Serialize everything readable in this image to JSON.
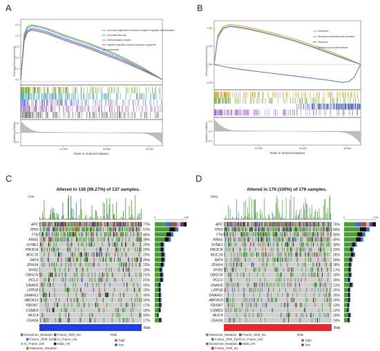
{
  "colors": {
    "risk_high": "#e8262b",
    "risk_low": "#1f3fe6",
    "frame_shift_ins": "#7b2e8c",
    "frame_shift_del": "#3b6fb5",
    "missense": "#4d9a3a",
    "nonsense": "#b04a33",
    "in_frame_ins": "#9a8a42",
    "in_frame_del": "#c9a8c2",
    "multi_hit": "#111111",
    "no_mut": "#cfcfcf",
    "gsea_a": [
      "#7a9e3a",
      "#2b9fb0",
      "#6b79d0",
      "#a05fb0",
      "#6c6c6c"
    ],
    "gsea_b": [
      "#c1a22a",
      "#7aa84a",
      "#4a5fb0",
      "#9b5fd0"
    ]
  },
  "panels": {
    "A": {
      "label": "A",
      "ylabel_top": "Running Enrichment Score",
      "ylabel_bottom": "Ranked List Metric",
      "xlabel": "Rank in Ordered Dataset",
      "xticks": [
        "10,000",
        "20,000",
        "30,000"
      ],
      "yticks": [
        "0.5",
        "0.4",
        "0.3",
        "0.2",
        "0.1",
        "0.0"
      ],
      "bottom_yticks": [
        "0.5",
        "0.0",
        "-0.5"
      ],
      "legend": [
        "chromatin organization involved in negative regulation of transcription",
        "chromatin silencing",
        "DNA packaging complex",
        "negative regulation of gene expression, epigenetic",
        "nucleosome"
      ]
    },
    "B": {
      "label": "B",
      "ylabel_top": "Running Enrichment Score",
      "ylabel_bottom": "Ranked List Metric",
      "xlabel": "Rank in Ordered Dataset",
      "xticks": [
        "10,000",
        "20,000",
        "30,000"
      ],
      "yticks": [
        "0.50",
        "0.25",
        "0.00",
        "-0.25"
      ],
      "bottom_yticks": [
        "0.5",
        "0.0",
        "-0.5"
      ],
      "legend": [
        "Alcoholism",
        "Neutrophil extracellular trap formation",
        "Ribosome",
        "Systemic lupus erythematosus"
      ]
    },
    "C": {
      "label": "C",
      "title": "Altered in 136 (99.27%) of 137 samples.",
      "top_max": "7138",
      "side_axis": [
        "0",
        "105"
      ],
      "risk_label": "Risk",
      "genes": [
        "APC",
        "TP53",
        "TTN",
        "KRAS",
        "SYNE1",
        "PIK3CA",
        "MUC16",
        "FAT4",
        "ZFHX4",
        "RYR2",
        "OBSCN",
        "PCLO",
        "DNAH5",
        "LRP1B",
        "DNAH11",
        "ABCA13",
        "FBXW7",
        "CSMD3",
        "MUC4",
        "USH2A"
      ],
      "percents": [
        "77%",
        "57%",
        "45%",
        "39%",
        "23%",
        "23%",
        "25%",
        "25%",
        "23%",
        "19%",
        "21%",
        "21%",
        "15%",
        "15%",
        "16%",
        "16%",
        "17%",
        "15%",
        "10%",
        "17%"
      ],
      "legend": [
        "Nonsense_Mutation",
        "Frame_Shift_Ins",
        "Frame_Shift_Del",
        "In_Frame_Ins",
        "In_Frame_Del",
        "Multi_Hit",
        "Missense_Mutation"
      ],
      "risk_legend_title": "Risk",
      "risk_legend": [
        "high",
        "low"
      ],
      "risk_group": "low"
    },
    "D": {
      "label": "D",
      "title": "Altered in 179 (100%) of 179 samples.",
      "top_max": "29611",
      "side_axis": [
        "0",
        "134"
      ],
      "risk_label": "Risk",
      "genes": [
        "APC",
        "TP53",
        "TTN",
        "KRAS",
        "SYNE1",
        "PIK3CA",
        "MUC16",
        "FAT4",
        "ZFHX4",
        "RYR2",
        "OBSCN",
        "PCLO",
        "DNAH5",
        "LRP1B",
        "DNAH11",
        "ABCA13",
        "FBXW7",
        "CSMD3",
        "MUC4",
        "USH2A"
      ],
      "percents": [
        "75%",
        "60%",
        "50%",
        "45%",
        "30%",
        "23%",
        "26%",
        "20%",
        "18%",
        "17%",
        "18%",
        "15%",
        "21%",
        "15%",
        "15%",
        "15%",
        "13%",
        "12%",
        "16%",
        "14%"
      ],
      "legend": [
        "Missense_Mutation",
        "Frame_Shift_Ins",
        "Frame_Shift_Del",
        "In_Frame_Del",
        "Nonsense_Mutation",
        "Multi_Hit",
        "Frame_Shift_Ins"
      ],
      "risk_legend_title": "Risk",
      "risk_legend": [
        "high",
        "low"
      ],
      "risk_group": "high"
    }
  },
  "chart_data": [
    {
      "type": "line",
      "panel": "A",
      "xlabel": "Rank in Ordered Dataset",
      "ylabel": "Running Enrichment Score",
      "xlim": [
        0,
        33000
      ],
      "ylim": [
        -0.05,
        0.55
      ],
      "series": [
        {
          "name": "chromatin organization involved in negative regulation of transcription",
          "x": [
            0,
            800,
            1500,
            2500,
            4000,
            6000,
            8000,
            10000,
            13000,
            16000,
            20000,
            24000,
            28000,
            33000
          ],
          "y": [
            0,
            0.42,
            0.48,
            0.5,
            0.49,
            0.47,
            0.44,
            0.41,
            0.37,
            0.33,
            0.27,
            0.2,
            0.12,
            0
          ]
        },
        {
          "name": "chromatin silencing",
          "x": [
            0,
            800,
            1500,
            2500,
            4000,
            6000,
            8000,
            10000,
            13000,
            16000,
            20000,
            24000,
            28000,
            33000
          ],
          "y": [
            0,
            0.4,
            0.47,
            0.49,
            0.48,
            0.46,
            0.43,
            0.4,
            0.36,
            0.32,
            0.26,
            0.19,
            0.11,
            0
          ]
        },
        {
          "name": "DNA packaging complex",
          "x": [
            0,
            800,
            1500,
            2500,
            4000,
            6000,
            8000,
            10000,
            13000,
            16000,
            20000,
            24000,
            28000,
            33000
          ],
          "y": [
            0,
            0.38,
            0.45,
            0.47,
            0.46,
            0.44,
            0.41,
            0.38,
            0.34,
            0.3,
            0.24,
            0.18,
            0.1,
            0
          ]
        },
        {
          "name": "negative regulation of gene expression, epigenetic",
          "x": [
            0,
            800,
            1500,
            2500,
            4000,
            6000,
            8000,
            10000,
            13000,
            16000,
            20000,
            24000,
            28000,
            33000
          ],
          "y": [
            0,
            0.36,
            0.44,
            0.46,
            0.45,
            0.43,
            0.4,
            0.37,
            0.33,
            0.29,
            0.23,
            0.17,
            0.1,
            0
          ]
        },
        {
          "name": "nucleosome",
          "x": [
            0,
            800,
            1500,
            2500,
            4000,
            6000,
            8000,
            10000,
            13000,
            16000,
            20000,
            24000,
            28000,
            33000
          ],
          "y": [
            0,
            0.35,
            0.43,
            0.45,
            0.44,
            0.42,
            0.39,
            0.36,
            0.32,
            0.28,
            0.22,
            0.16,
            0.09,
            0
          ]
        }
      ]
    },
    {
      "type": "line",
      "panel": "B",
      "xlabel": "Rank in Ordered Dataset",
      "ylabel": "Running Enrichment Score",
      "xlim": [
        0,
        33000
      ],
      "ylim": [
        -0.35,
        0.6
      ],
      "series": [
        {
          "name": "Alcoholism",
          "x": [
            0,
            800,
            2000,
            3500,
            5000,
            7000,
            10000,
            14000,
            18000,
            22000,
            26000,
            30000,
            33000
          ],
          "y": [
            0,
            0.4,
            0.52,
            0.55,
            0.54,
            0.52,
            0.48,
            0.42,
            0.35,
            0.27,
            0.18,
            0.08,
            0
          ]
        },
        {
          "name": "Neutrophil extracellular trap formation",
          "x": [
            0,
            800,
            2000,
            3500,
            5000,
            7000,
            10000,
            14000,
            18000,
            22000,
            26000,
            30000,
            33000
          ],
          "y": [
            0,
            0.38,
            0.5,
            0.53,
            0.52,
            0.5,
            0.46,
            0.4,
            0.33,
            0.25,
            0.16,
            0.07,
            0
          ]
        },
        {
          "name": "Ribosome",
          "x": [
            0,
            3000,
            6000,
            10000,
            14000,
            18000,
            22000,
            26000,
            29000,
            30500,
            31500,
            33000
          ],
          "y": [
            0,
            -0.04,
            -0.07,
            -0.1,
            -0.13,
            -0.16,
            -0.19,
            -0.22,
            -0.25,
            -0.23,
            -0.18,
            0
          ]
        },
        {
          "name": "Systemic lupus erythematosus",
          "x": [
            0,
            800,
            2000,
            3500,
            5000,
            7000,
            10000,
            14000,
            18000,
            22000,
            26000,
            30000,
            33000
          ],
          "y": [
            0,
            0.36,
            0.49,
            0.52,
            0.51,
            0.49,
            0.45,
            0.39,
            0.32,
            0.24,
            0.15,
            0.06,
            0
          ]
        }
      ]
    },
    {
      "type": "bar",
      "panel": "C",
      "title": "Altered in 136 (99.27%) of 137 samples.",
      "categories": [
        "APC",
        "TP53",
        "TTN",
        "KRAS",
        "SYNE1",
        "PIK3CA",
        "MUC16",
        "FAT4",
        "ZFHX4",
        "RYR2",
        "OBSCN",
        "PCLO",
        "DNAH5",
        "LRP1B",
        "DNAH11",
        "ABCA13",
        "FBXW7",
        "CSMD3",
        "MUC4",
        "USH2A"
      ],
      "values": [
        77,
        57,
        45,
        39,
        23,
        23,
        25,
        25,
        23,
        19,
        21,
        21,
        15,
        15,
        16,
        16,
        17,
        15,
        10,
        17
      ],
      "ylabel": "% altered"
    },
    {
      "type": "bar",
      "panel": "D",
      "title": "Altered in 179 (100%) of 179 samples.",
      "categories": [
        "APC",
        "TP53",
        "TTN",
        "KRAS",
        "SYNE1",
        "PIK3CA",
        "MUC16",
        "FAT4",
        "ZFHX4",
        "RYR2",
        "OBSCN",
        "PCLO",
        "DNAH5",
        "LRP1B",
        "DNAH11",
        "ABCA13",
        "FBXW7",
        "CSMD3",
        "MUC4",
        "USH2A"
      ],
      "values": [
        75,
        60,
        50,
        45,
        30,
        23,
        26,
        20,
        18,
        17,
        18,
        15,
        21,
        15,
        15,
        15,
        13,
        12,
        16,
        14
      ],
      "ylabel": "% altered"
    }
  ]
}
